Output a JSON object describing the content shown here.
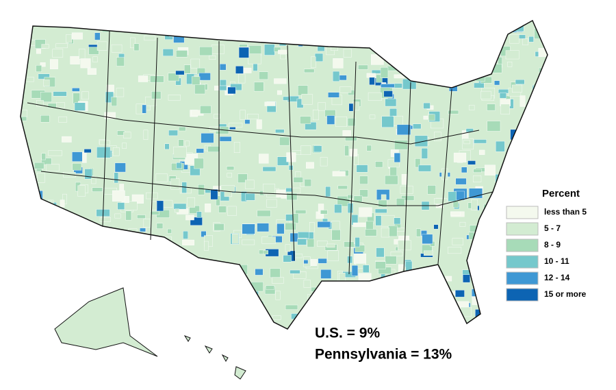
{
  "legend": {
    "title": "Percent",
    "items": [
      {
        "label": "less than 5",
        "color": "#f4f9ee"
      },
      {
        "label": "5 - 7",
        "color": "#d3ecd2"
      },
      {
        "label": "8 - 9",
        "color": "#a7dbb8"
      },
      {
        "label": "10 - 11",
        "color": "#75c8cc"
      },
      {
        "label": "12 - 14",
        "color": "#3f98d4"
      },
      {
        "label": "15 or more",
        "color": "#0d64b3"
      }
    ]
  },
  "annotations": [
    "U.S. = 9%",
    "Pennsylvania = 13%"
  ]
}
